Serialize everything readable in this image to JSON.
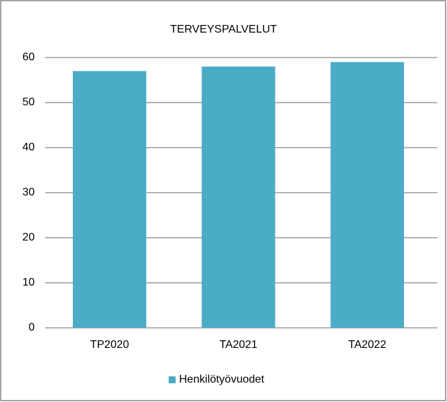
{
  "chart_data": {
    "type": "bar",
    "title": "TERVEYSPALVELUT",
    "categories": [
      "TP2020",
      "TA2021",
      "TA2022"
    ],
    "series": [
      {
        "name": "Henkilötyövuodet",
        "color": "#4bacc6",
        "values": [
          57,
          58,
          59
        ]
      }
    ],
    "ylim": [
      0,
      60
    ],
    "yticks": [
      0,
      10,
      20,
      30,
      40,
      50,
      60
    ],
    "grid": true,
    "legend": "bottom"
  }
}
